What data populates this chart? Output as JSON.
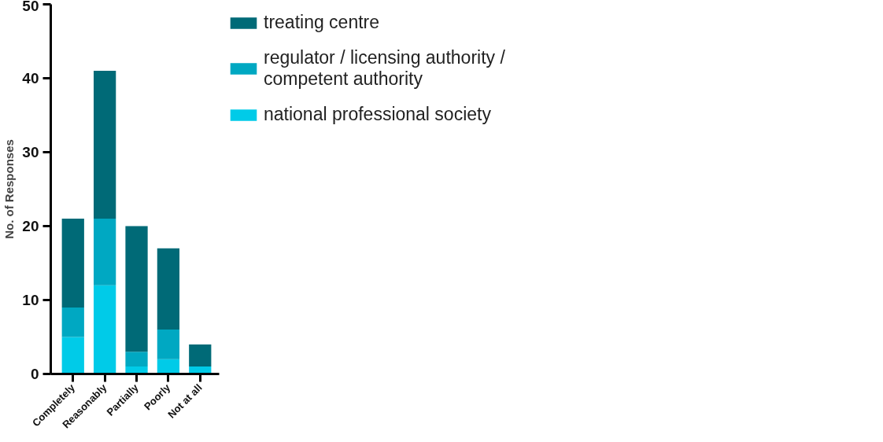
{
  "chart_data": {
    "type": "bar",
    "stacked": true,
    "ylabel": "No. of Responses",
    "categories": [
      "Completely",
      "Reasonably",
      "Partially",
      "Poorly",
      "Not at all"
    ],
    "series": [
      {
        "name": "national professional society",
        "color": "#00cbe8",
        "values": [
          5,
          12,
          1,
          2,
          1
        ]
      },
      {
        "name": "regulator / licensing authority / competent authority",
        "color": "#00a8c2",
        "values": [
          4,
          9,
          2,
          4,
          0
        ]
      },
      {
        "name": "treating centre",
        "color": "#006a77",
        "values": [
          12,
          20,
          17,
          11,
          3
        ]
      }
    ],
    "ylim": [
      0,
      50
    ],
    "yticks": [
      0,
      10,
      20,
      30,
      40,
      50
    ],
    "grid": false,
    "legend": "right"
  }
}
